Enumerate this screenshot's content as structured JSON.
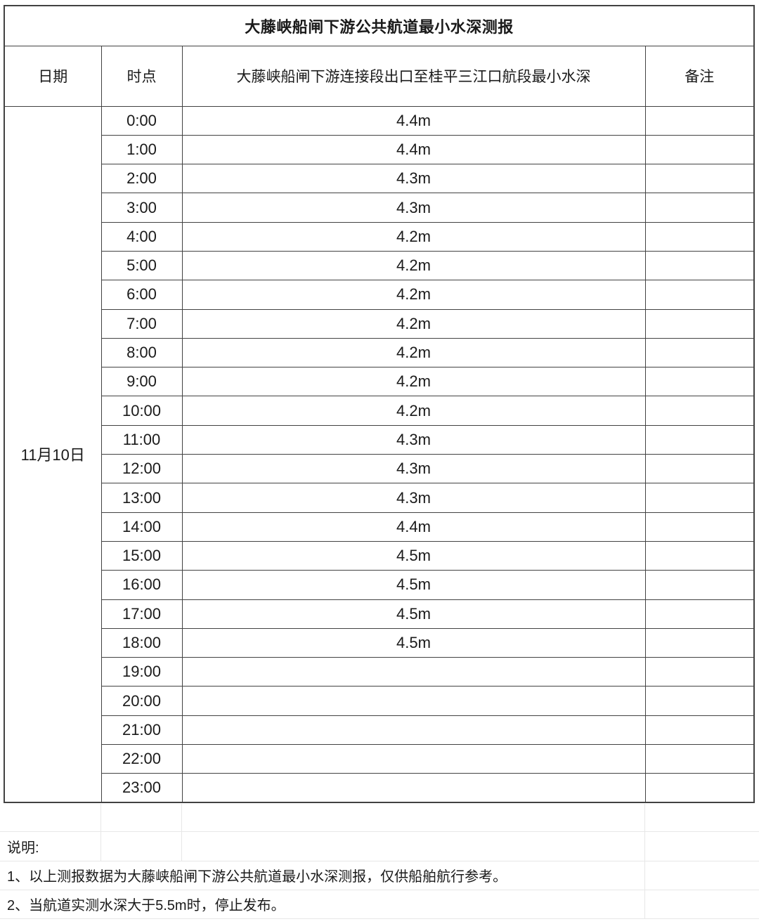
{
  "title": "大藤峡船闸下游公共航道最小水深测报",
  "table": {
    "headers": {
      "date": "日期",
      "time": "时点",
      "depth": "大藤峡船闸下游连接段出口至桂平三江口航段最小水深",
      "remark": "备注"
    },
    "date": "11月10日",
    "rows": [
      {
        "time": "0:00",
        "depth": "4.4m",
        "remark": ""
      },
      {
        "time": "1:00",
        "depth": "4.4m",
        "remark": ""
      },
      {
        "time": "2:00",
        "depth": "4.3m",
        "remark": ""
      },
      {
        "time": "3:00",
        "depth": "4.3m",
        "remark": ""
      },
      {
        "time": "4:00",
        "depth": "4.2m",
        "remark": ""
      },
      {
        "time": "5:00",
        "depth": "4.2m",
        "remark": ""
      },
      {
        "time": "6:00",
        "depth": "4.2m",
        "remark": ""
      },
      {
        "time": "7:00",
        "depth": "4.2m",
        "remark": ""
      },
      {
        "time": "8:00",
        "depth": "4.2m",
        "remark": ""
      },
      {
        "time": "9:00",
        "depth": "4.2m",
        "remark": ""
      },
      {
        "time": "10:00",
        "depth": "4.2m",
        "remark": ""
      },
      {
        "time": "11:00",
        "depth": "4.3m",
        "remark": ""
      },
      {
        "time": "12:00",
        "depth": "4.3m",
        "remark": ""
      },
      {
        "time": "13:00",
        "depth": "4.3m",
        "remark": ""
      },
      {
        "time": "14:00",
        "depth": "4.4m",
        "remark": ""
      },
      {
        "time": "15:00",
        "depth": "4.5m",
        "remark": ""
      },
      {
        "time": "16:00",
        "depth": "4.5m",
        "remark": ""
      },
      {
        "time": "17:00",
        "depth": "4.5m",
        "remark": ""
      },
      {
        "time": "18:00",
        "depth": "4.5m",
        "remark": ""
      },
      {
        "time": "19:00",
        "depth": "",
        "remark": ""
      },
      {
        "time": "20:00",
        "depth": "",
        "remark": ""
      },
      {
        "time": "21:00",
        "depth": "",
        "remark": ""
      },
      {
        "time": "22:00",
        "depth": "",
        "remark": ""
      },
      {
        "time": "23:00",
        "depth": "",
        "remark": ""
      }
    ]
  },
  "notes": {
    "label": "说明:",
    "items": [
      "1、以上测报数据为大藤峡船闸下游公共航道最小水深测报，仅供船舶航行参考。",
      "2、当航道实测水深大于5.5m时，停止发布。"
    ]
  },
  "colors": {
    "table_border": "#424242",
    "grid_line": "#e7e7e7",
    "text": "#1a1a1a"
  }
}
